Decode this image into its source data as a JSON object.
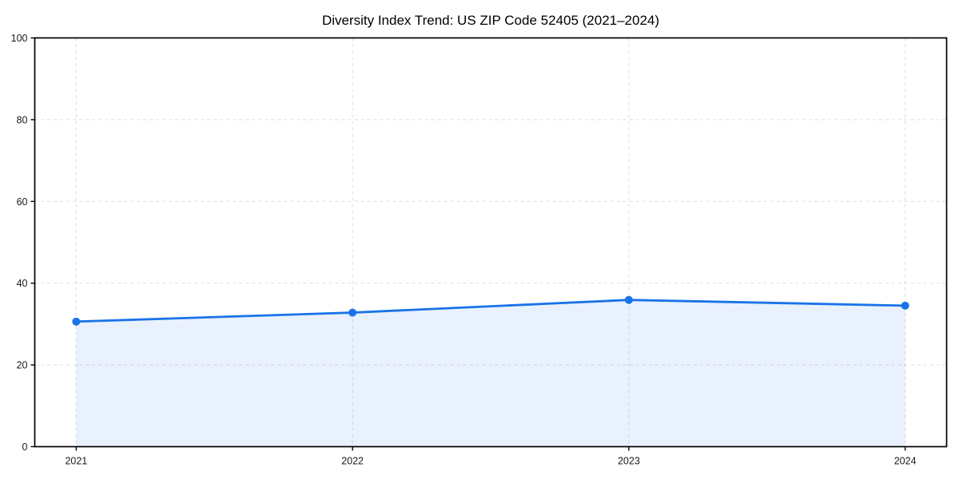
{
  "page": {
    "background_color": "#ffffff"
  },
  "chart_data": {
    "type": "area",
    "title": "Diversity Index Trend: US ZIP Code 52405 (2021–2024)",
    "x": [
      2021,
      2022,
      2023,
      2024
    ],
    "series": [
      {
        "name": "Diversity Index",
        "values": [
          30.6,
          32.8,
          35.9,
          34.5
        ]
      }
    ],
    "xticks": [
      "2021",
      "2022",
      "2023",
      "2024"
    ],
    "yticks": [
      0,
      20,
      40,
      60,
      80,
      100
    ],
    "xlim": [
      2020.85,
      2024.15
    ],
    "ylim": [
      0,
      100
    ],
    "xlabel": "",
    "ylabel": "",
    "grid": true,
    "grid_style": "dashed",
    "legend": false,
    "marker": "circle",
    "colors": {
      "line": "#1a73e8",
      "marker": "#1a73e8",
      "fill": "#1a73e8",
      "fill_opacity": 0.1,
      "grid": "#dcdcdc",
      "spine": "#000000",
      "tick": "#000000",
      "tick_label": "#1a1a1a",
      "title": "#000000",
      "background": "#ffffff"
    }
  }
}
